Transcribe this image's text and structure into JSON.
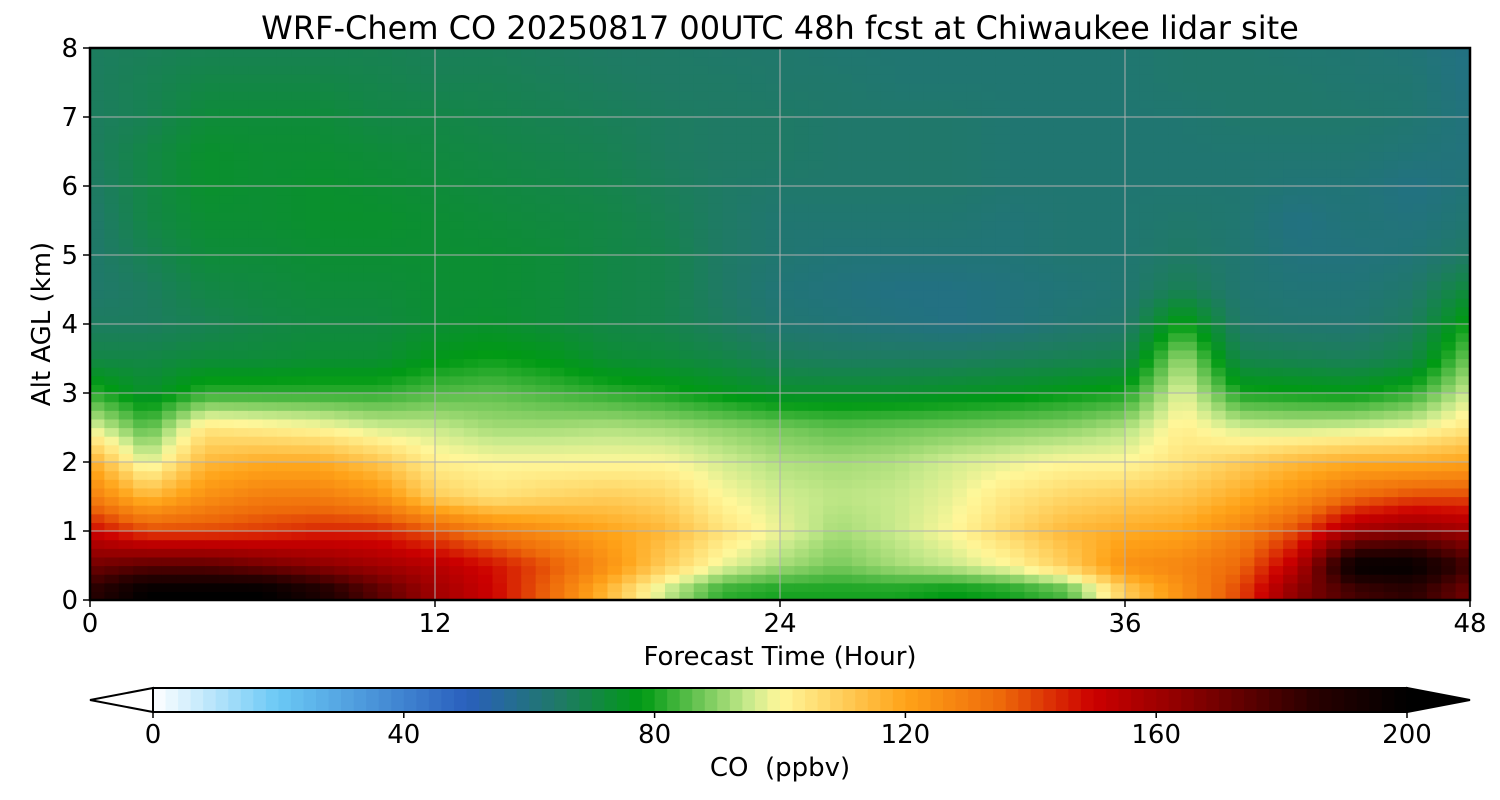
{
  "chart_data": {
    "type": "heatmap",
    "title": "WRF-Chem CO  20250817 00UTC 48h fcst at Chiwaukee lidar site",
    "xlabel": "Forecast Time (Hour)",
    "ylabel": "Alt AGL (km)",
    "xlim": [
      0,
      48
    ],
    "ylim": [
      0,
      8
    ],
    "x_ticks": [
      0,
      12,
      24,
      36,
      48
    ],
    "y_ticks": [
      0,
      1,
      2,
      3,
      4,
      5,
      6,
      7,
      8
    ],
    "grid": true,
    "x": [
      0,
      2,
      4,
      6,
      8,
      10,
      12,
      14,
      16,
      18,
      20,
      22,
      24,
      26,
      28,
      30,
      32,
      34,
      36,
      38,
      40,
      42,
      44,
      46,
      48
    ],
    "y": [
      0.15,
      0.5,
      1.0,
      1.5,
      2.0,
      2.5,
      3.0,
      3.5,
      4.0,
      4.5,
      5.0,
      5.5,
      6.0,
      6.5,
      7.0,
      7.5,
      8.0
    ],
    "z": [
      [
        185,
        200,
        200,
        200,
        190,
        175,
        160,
        150,
        135,
        115,
        95,
        82,
        80,
        80,
        80,
        78,
        80,
        85,
        110,
        125,
        140,
        165,
        180,
        185,
        170
      ],
      [
        170,
        175,
        175,
        170,
        165,
        160,
        155,
        148,
        138,
        125,
        110,
        98,
        92,
        88,
        92,
        95,
        100,
        110,
        125,
        128,
        135,
        155,
        200,
        200,
        180
      ],
      [
        150,
        140,
        140,
        142,
        145,
        145,
        138,
        130,
        125,
        120,
        115,
        105,
        98,
        92,
        95,
        100,
        108,
        115,
        118,
        120,
        128,
        140,
        160,
        165,
        160
      ],
      [
        130,
        115,
        125,
        130,
        130,
        125,
        110,
        105,
        108,
        110,
        108,
        100,
        96,
        94,
        95,
        98,
        104,
        108,
        110,
        112,
        118,
        125,
        135,
        140,
        140
      ],
      [
        118,
        96,
        115,
        118,
        118,
        112,
        102,
        100,
        100,
        100,
        100,
        96,
        93,
        92,
        93,
        96,
        98,
        100,
        100,
        105,
        110,
        115,
        118,
        118,
        120
      ],
      [
        98,
        85,
        104,
        102,
        100,
        96,
        95,
        92,
        92,
        93,
        92,
        90,
        88,
        86,
        87,
        88,
        89,
        90,
        93,
        102,
        96,
        95,
        96,
        98,
        104
      ],
      [
        82,
        74,
        82,
        82,
        82,
        82,
        85,
        86,
        84,
        82,
        80,
        77,
        74,
        74,
        74,
        75,
        76,
        78,
        80,
        98,
        80,
        79,
        78,
        82,
        96
      ],
      [
        70,
        70,
        72,
        72,
        73,
        73,
        77,
        79,
        77,
        73,
        72,
        70,
        67,
        66,
        66,
        66,
        67,
        68,
        69,
        92,
        69,
        68,
        67,
        70,
        88
      ],
      [
        66,
        66,
        68,
        70,
        71,
        71,
        73,
        74,
        72,
        70,
        69,
        66,
        63,
        62,
        61,
        60,
        61,
        63,
        64,
        80,
        64,
        63,
        63,
        66,
        80
      ],
      [
        64,
        66,
        70,
        71,
        72,
        72,
        73,
        73,
        72,
        70,
        69,
        65,
        62,
        61,
        60,
        60,
        61,
        62,
        63,
        68,
        63,
        62,
        62,
        64,
        72
      ],
      [
        64,
        68,
        72,
        72,
        73,
        73,
        73,
        73,
        72,
        70,
        69,
        65,
        63,
        62,
        62,
        62,
        62,
        63,
        63,
        65,
        63,
        61,
        61,
        62,
        65
      ],
      [
        64,
        70,
        73,
        73,
        74,
        74,
        73,
        72,
        71,
        70,
        68,
        65,
        63,
        63,
        63,
        63,
        62,
        63,
        63,
        64,
        63,
        60,
        62,
        61,
        63
      ],
      [
        65,
        70,
        74,
        73,
        74,
        73,
        72,
        71,
        70,
        69,
        67,
        65,
        64,
        64,
        64,
        64,
        63,
        63,
        63,
        63,
        63,
        62,
        62,
        60,
        62
      ],
      [
        66,
        70,
        74,
        73,
        73,
        72,
        71,
        70,
        69,
        68,
        66,
        65,
        65,
        64,
        64,
        64,
        63,
        63,
        63,
        63,
        63,
        63,
        63,
        62,
        61
      ],
      [
        66,
        68,
        72,
        72,
        72,
        70,
        70,
        69,
        68,
        67,
        66,
        65,
        65,
        64,
        64,
        64,
        63,
        63,
        63,
        63,
        64,
        64,
        64,
        63,
        61
      ],
      [
        66,
        68,
        70,
        70,
        70,
        69,
        68,
        68,
        67,
        66,
        65,
        65,
        64,
        64,
        63,
        63,
        63,
        63,
        63,
        64,
        64,
        64,
        63,
        63,
        60
      ],
      [
        66,
        67,
        68,
        68,
        68,
        68,
        67,
        67,
        66,
        65,
        65,
        64,
        64,
        63,
        63,
        63,
        63,
        63,
        63,
        64,
        64,
        63,
        63,
        62,
        60
      ]
    ],
    "colorbar": {
      "label": "CO  (ppbv)",
      "vmin": 0,
      "vmax": 200,
      "ticks": [
        0,
        40,
        80,
        120,
        160,
        200
      ],
      "extend": "both",
      "colors": [
        {
          "value": 0,
          "color": "#ffffff"
        },
        {
          "value": 20,
          "color": "#6ac8f5"
        },
        {
          "value": 50,
          "color": "#2a5fbd"
        },
        {
          "value": 65,
          "color": "#1f7a65"
        },
        {
          "value": 78,
          "color": "#009a14"
        },
        {
          "value": 95,
          "color": "#c8ea8c"
        },
        {
          "value": 100,
          "color": "#fff79a"
        },
        {
          "value": 120,
          "color": "#ffa318"
        },
        {
          "value": 135,
          "color": "#ee6a0a"
        },
        {
          "value": 150,
          "color": "#cc0000"
        },
        {
          "value": 165,
          "color": "#8a0000"
        },
        {
          "value": 185,
          "color": "#2a0000"
        },
        {
          "value": 200,
          "color": "#000000"
        }
      ]
    }
  }
}
